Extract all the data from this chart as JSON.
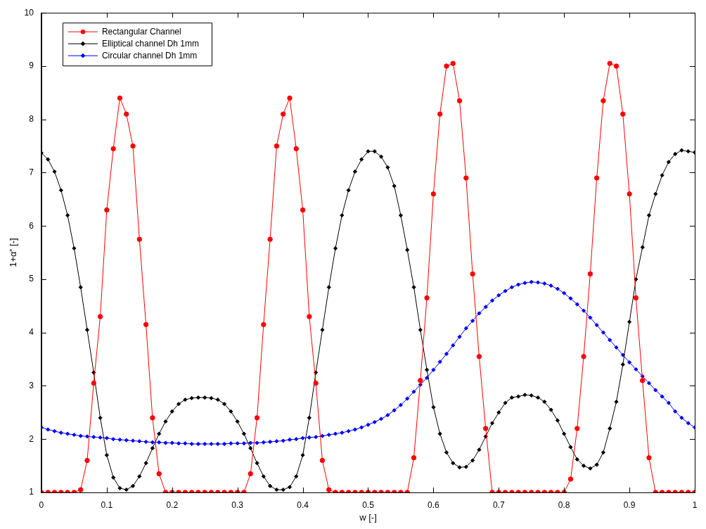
{
  "chart_data": {
    "type": "line",
    "xlabel": "w [-]",
    "ylabel": "1+α⁺ [-]",
    "xlim": [
      0,
      1
    ],
    "xticks": [
      0,
      0.1,
      0.2,
      0.3,
      0.4,
      0.5,
      0.6,
      0.7,
      0.8,
      0.9,
      1
    ],
    "ylim": [
      1,
      10
    ],
    "yticks": [
      1,
      2,
      3,
      4,
      5,
      6,
      7,
      8,
      9,
      10
    ],
    "grid": false,
    "legend": "top left",
    "line_style": "solid",
    "x": [
      0,
      0.01,
      0.02,
      0.03,
      0.04,
      0.05,
      0.06,
      0.07,
      0.08,
      0.09,
      0.1,
      0.11,
      0.12,
      0.13,
      0.14,
      0.15,
      0.16,
      0.17,
      0.18,
      0.19,
      0.2,
      0.21,
      0.22,
      0.23,
      0.24,
      0.25,
      0.26,
      0.27,
      0.28,
      0.29,
      0.3,
      0.31,
      0.32,
      0.33,
      0.34,
      0.35,
      0.36,
      0.37,
      0.38,
      0.39,
      0.4,
      0.41,
      0.42,
      0.43,
      0.44,
      0.45,
      0.46,
      0.47,
      0.48,
      0.49,
      0.5,
      0.51,
      0.52,
      0.53,
      0.54,
      0.55,
      0.56,
      0.57,
      0.58,
      0.59,
      0.6,
      0.61,
      0.62,
      0.63,
      0.64,
      0.65,
      0.66,
      0.67,
      0.68,
      0.69,
      0.7,
      0.71,
      0.72,
      0.73,
      0.74,
      0.75,
      0.76,
      0.77,
      0.78,
      0.79,
      0.8,
      0.81,
      0.82,
      0.83,
      0.84,
      0.85,
      0.86,
      0.87,
      0.88,
      0.89,
      0.9,
      0.91,
      0.92,
      0.93,
      0.94,
      0.95,
      0.96,
      0.97,
      0.98,
      0.99,
      1
    ],
    "series": [
      {
        "name": "Rectangular Channel",
        "color": "#ff0000",
        "marker": "circle",
        "values": [
          1,
          1,
          1,
          1,
          1,
          1,
          1.05,
          1.6,
          3.05,
          4.3,
          6.3,
          7.45,
          8.4,
          8.1,
          7.5,
          5.75,
          4.15,
          2.4,
          1.35,
          1,
          1,
          1,
          1,
          1,
          1,
          1,
          1,
          1,
          1,
          1,
          1,
          1,
          1.35,
          2.4,
          4.15,
          5.75,
          7.5,
          8.1,
          8.4,
          7.45,
          6.3,
          4.3,
          3.05,
          1.6,
          1.05,
          1,
          1,
          1,
          1,
          1,
          1,
          1,
          1,
          1,
          1,
          1,
          1,
          1.65,
          3.1,
          4.65,
          6.6,
          8.1,
          9.0,
          9.05,
          8.35,
          6.9,
          5.1,
          3.55,
          2.2,
          1,
          1,
          1,
          1,
          1,
          1,
          1,
          1,
          1,
          1,
          1,
          1,
          1.25,
          2.2,
          3.55,
          5.1,
          6.9,
          8.35,
          9.05,
          9.0,
          8.1,
          6.6,
          4.65,
          3.1,
          1.65,
          1,
          1,
          1,
          1,
          1,
          1,
          1
        ]
      },
      {
        "name": "Elliptical channel Dh 1mm",
        "color": "#000000",
        "marker": "diamond",
        "values": [
          7.37,
          7.25,
          7.02,
          6.67,
          6.2,
          5.58,
          4.85,
          4.05,
          3.25,
          2.4,
          1.7,
          1.28,
          1.08,
          1.05,
          1.12,
          1.3,
          1.55,
          1.83,
          2.1,
          2.33,
          2.52,
          2.66,
          2.74,
          2.77,
          2.78,
          2.78,
          2.77,
          2.74,
          2.66,
          2.52,
          2.33,
          2.1,
          1.83,
          1.55,
          1.3,
          1.12,
          1.05,
          1.05,
          1.1,
          1.3,
          1.7,
          2.4,
          3.25,
          4.05,
          4.85,
          5.58,
          6.2,
          6.67,
          7.02,
          7.25,
          7.4,
          7.4,
          7.3,
          7.1,
          6.75,
          6.2,
          5.55,
          4.85,
          4.05,
          3.3,
          2.6,
          2.1,
          1.75,
          1.55,
          1.47,
          1.48,
          1.6,
          1.8,
          2.05,
          2.3,
          2.5,
          2.68,
          2.78,
          2.8,
          2.83,
          2.82,
          2.78,
          2.7,
          2.55,
          2.35,
          2.1,
          1.85,
          1.62,
          1.5,
          1.45,
          1.52,
          1.75,
          2.2,
          2.7,
          3.4,
          4.2,
          5.0,
          5.6,
          6.2,
          6.6,
          6.95,
          7.2,
          7.35,
          7.42,
          7.4,
          7.38
        ]
      },
      {
        "name": "Circular channel Dh 1mm",
        "color": "#0000ff",
        "marker": "diamond",
        "values": [
          2.22,
          2.18,
          2.15,
          2.12,
          2.1,
          2.08,
          2.06,
          2.05,
          2.04,
          2.03,
          2.02,
          2.0,
          1.99,
          1.98,
          1.97,
          1.96,
          1.95,
          1.94,
          1.94,
          1.93,
          1.93,
          1.92,
          1.92,
          1.91,
          1.91,
          1.91,
          1.91,
          1.91,
          1.91,
          1.92,
          1.92,
          1.92,
          1.93,
          1.93,
          1.94,
          1.95,
          1.96,
          1.97,
          1.99,
          2.0,
          2.02,
          2.03,
          2.04,
          2.06,
          2.08,
          2.1,
          2.12,
          2.15,
          2.18,
          2.22,
          2.27,
          2.32,
          2.38,
          2.45,
          2.54,
          2.64,
          2.76,
          2.89,
          3.02,
          3.15,
          3.3,
          3.45,
          3.6,
          3.76,
          3.92,
          4.08,
          4.22,
          4.36,
          4.48,
          4.6,
          4.7,
          4.78,
          4.85,
          4.9,
          4.93,
          4.95,
          4.94,
          4.92,
          4.88,
          4.82,
          4.74,
          4.64,
          4.53,
          4.41,
          4.28,
          4.14,
          4.0,
          3.86,
          3.72,
          3.58,
          3.44,
          3.31,
          3.18,
          3.05,
          2.92,
          2.8,
          2.68,
          2.52,
          2.4,
          2.3,
          2.22
        ]
      }
    ]
  }
}
